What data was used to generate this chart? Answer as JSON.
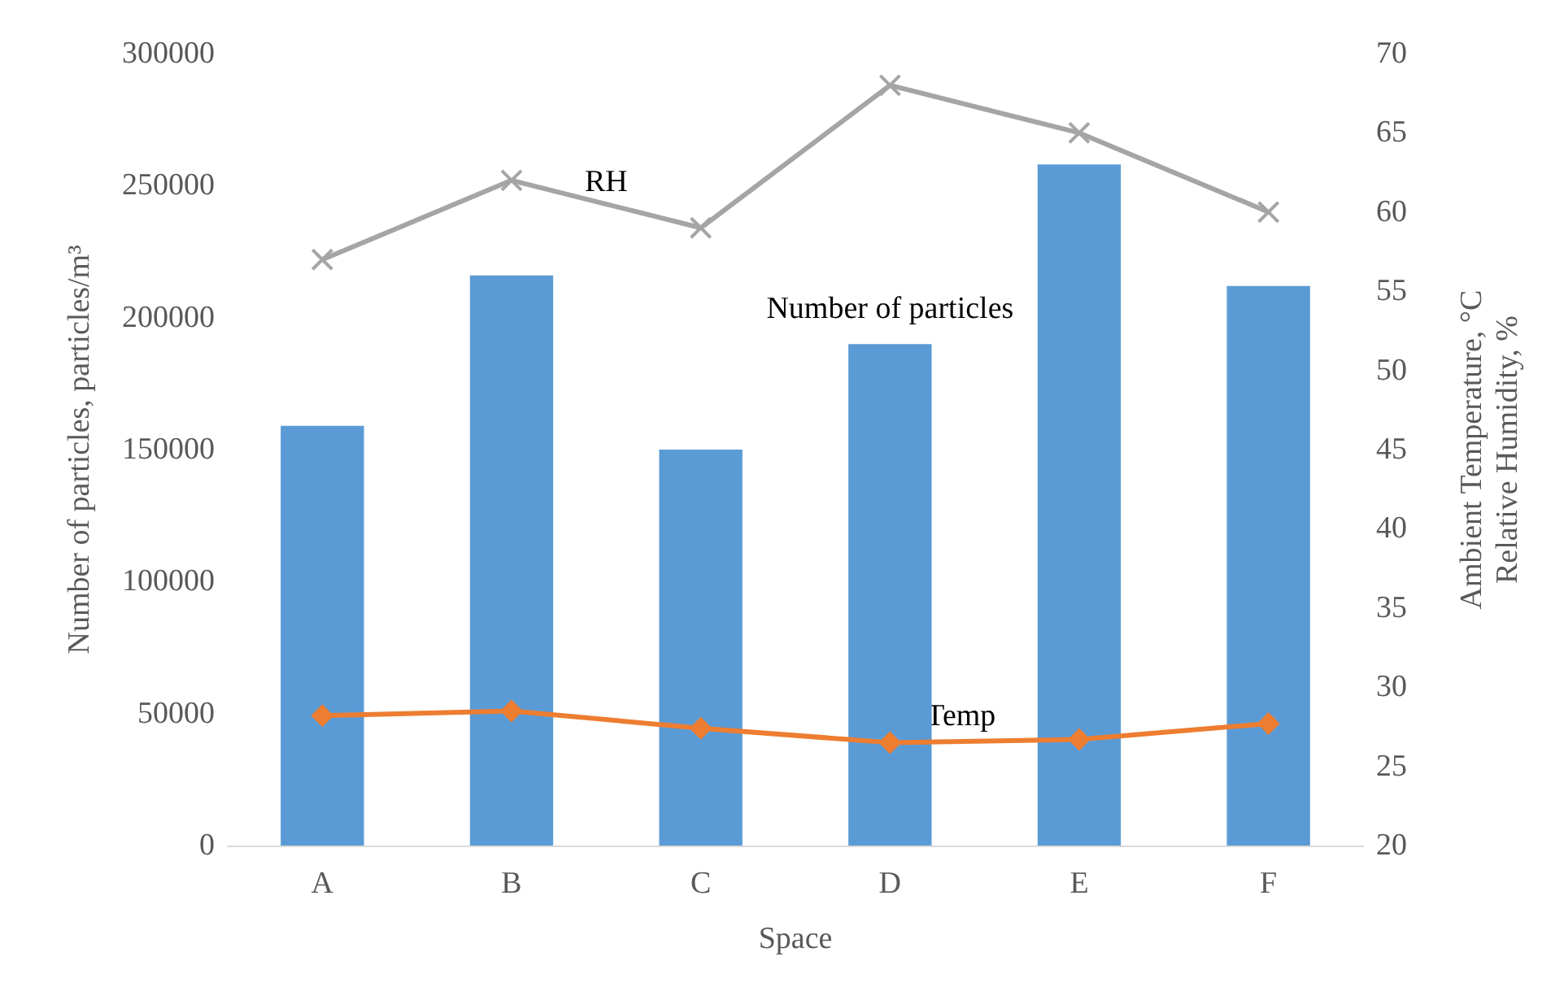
{
  "chart_data": {
    "type": "bar",
    "xlabel": "Space",
    "ylabel": "Number of particles, particles/m³",
    "y2label": "Ambient Temperature, °C\nRelative Humidity, %",
    "categories": [
      "A",
      "B",
      "C",
      "D",
      "E",
      "F"
    ],
    "series": [
      {
        "name": "Number of particles",
        "color": "#5b9bd5",
        "values": [
          159000,
          216000,
          150000,
          190000,
          258000,
          212000
        ]
      },
      {
        "name": "RH",
        "type": "line",
        "axis": "y2",
        "color": "#a5a5a5",
        "marker": "cross",
        "values": [
          57,
          62,
          59,
          68,
          65,
          60
        ]
      },
      {
        "name": "Temp",
        "type": "line",
        "axis": "y2",
        "color": "#ed7d31",
        "marker": "diamond",
        "values": [
          28.2,
          28.5,
          27.4,
          26.5,
          26.7,
          27.7
        ]
      }
    ],
    "ylim": [
      0,
      300000
    ],
    "yticks": [
      0,
      50000,
      100000,
      150000,
      200000,
      250000,
      300000
    ],
    "y2lim": [
      20,
      70
    ],
    "y2ticks": [
      20,
      25,
      30,
      35,
      40,
      45,
      50,
      55,
      60,
      65,
      70
    ]
  }
}
